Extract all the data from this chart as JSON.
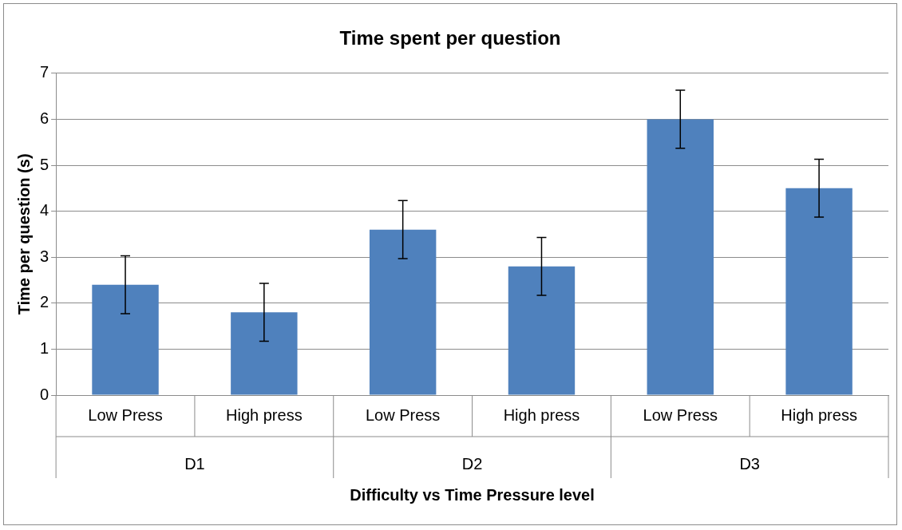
{
  "chart_data": {
    "type": "bar",
    "title": "Time spent per question",
    "xlabel": "Difficulty vs Time Pressure level",
    "ylabel": "Time per question (s)",
    "categories": [
      "Low Press",
      "High press",
      "Low Press",
      "High press",
      "Low Press",
      "High press"
    ],
    "values": [
      2.4,
      1.8,
      3.6,
      2.8,
      6.0,
      4.5
    ],
    "errors": [
      0.63,
      0.63,
      0.63,
      0.63,
      0.63,
      0.63
    ],
    "color": "#4f81bd",
    "annotations": [
      "D1",
      "D2",
      "D3"
    ],
    "ylim": [
      0,
      7
    ],
    "yticks": [
      0,
      1,
      2,
      3,
      4,
      5,
      6,
      7
    ],
    "grid": "y",
    "legend": false
  }
}
